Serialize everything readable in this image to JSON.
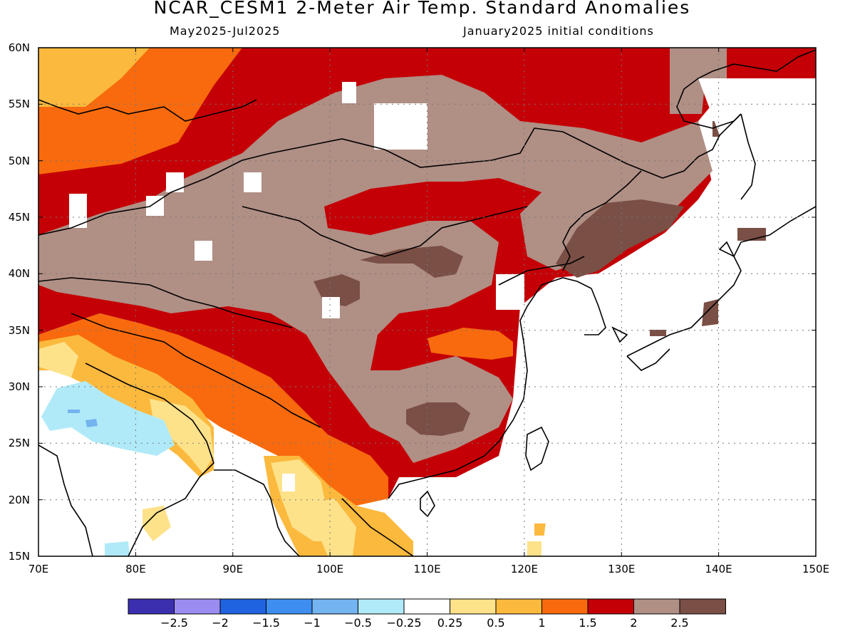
{
  "title": "NCAR_CESM1 2-Meter Air Temp. Standard Anomalies",
  "subtitle_left": "May2025-Jul2025",
  "subtitle_right": "January2025 initial conditions",
  "lon_ticks": [
    "70E",
    "80E",
    "90E",
    "100E",
    "110E",
    "120E",
    "130E",
    "140E",
    "150E"
  ],
  "lat_ticks": [
    "15N",
    "20N",
    "25N",
    "30N",
    "35N",
    "40N",
    "45N",
    "50N",
    "55N",
    "60N"
  ],
  "colorbar": {
    "colors": [
      "#3b2fb0",
      "#9a8cf0",
      "#1f63e0",
      "#3d8ef0",
      "#74b4f0",
      "#b0eaf8",
      "#ffffff",
      "#fde28a",
      "#fbb93d",
      "#f86a0d",
      "#c40006",
      "#b08f85",
      "#7a4f45"
    ],
    "labels": [
      "−2.5",
      "−2",
      "−1.5",
      "−1",
      "−0.5",
      "−0.25",
      "0.25",
      "0.5",
      "1",
      "1.5",
      "2",
      "2.5"
    ]
  }
}
